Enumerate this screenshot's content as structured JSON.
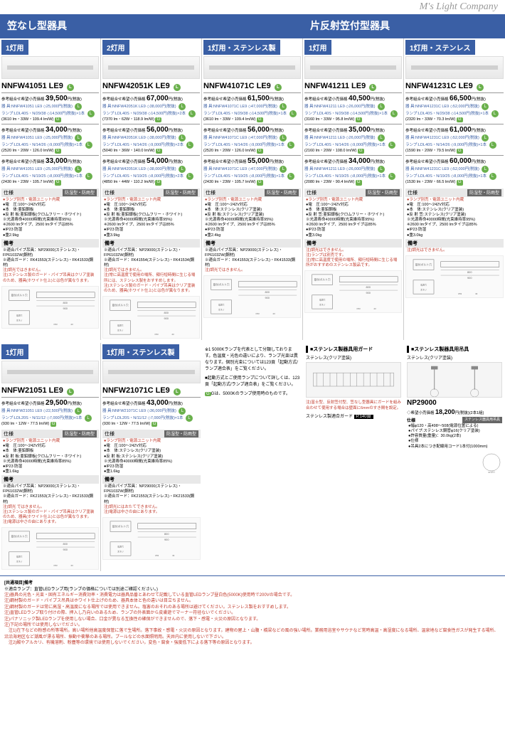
{
  "brand": "M's Light Company",
  "cat1": "笠なし型器具",
  "cat2": "片反射笠付型器具",
  "tabs": [
    "1灯用",
    "2灯用",
    "1灯用・ステンレス製",
    "1灯用",
    "1灯用・ステンレス"
  ],
  "models": [
    "NNFW41051 LE9",
    "NNFW42051K LE9",
    "NNFW41071C LE9",
    "NNFW41211 LE9",
    "NNFW41231C LE9"
  ],
  "p": [
    {
      "b1": {
        "lbl": "参考組合せ希望小売価格",
        "pr": "39,500",
        "tx": "円(税抜)",
        "l1": "器 具:NNFW41051 LE9 ◇25,000円(税抜)",
        "l2": "ランプ:LDL40S・N/29/38 ◇14,500円(税抜)×1本",
        "l3": "(3610 lm・33W・109.4 lm/W)"
      },
      "b2": {
        "lbl": "参考組合せ希望小売価格",
        "pr": "34,000",
        "tx": "円(税抜)",
        "l1": "器 具:NNFW41051 LE9 ◇25,000円(税抜)",
        "l2": "ランプ:LDL40S・N/14/26 ◇9,000円(税抜)×1本",
        "l3": "(2520 lm・20W・126.0 lm/W)"
      },
      "b3": {
        "lbl": "参考組合せ希望小売価格",
        "pr": "33,000",
        "tx": "円(税抜)",
        "l1": "器 具:NNFW41051 LE9 ◇25,000円(税抜)",
        "l2": "ランプ:LDL40S・N/19/25 ◇8,000円(税抜)×1本",
        "l3": "(2430 lm・23W・105.7 lm/W)"
      }
    },
    {
      "b1": {
        "lbl": "参考組合せ希望小売価格",
        "pr": "67,000",
        "tx": "円(税抜)",
        "l1": "器 具:NNFW42051K LE9 ◇38,000円(税抜)",
        "l2": "ランプ:LDL40S・N/29/38 ◇14,500円(税抜)×2本",
        "l3": "(7370 lm・62W・118.9 lm/W)"
      },
      "b2": {
        "lbl": "参考組合せ希望小売価格",
        "pr": "56,000",
        "tx": "円(税抜)",
        "l1": "器 具:NNFW42051K LE9 ◇38,000円(税抜)",
        "l2": "ランプ:LDL40S・N/14/26 ◇9,000円(税抜)×2本",
        "l3": "(5040 lm・36W・140.0 lm/W)"
      },
      "b3": {
        "lbl": "参考組合せ希望小売価格",
        "pr": "54,000",
        "tx": "円(税抜)",
        "l1": "器 具:NNFW42051K LE9 ◇38,000円(税抜)",
        "l2": "ランプ:LDL40S・N/19/25 ◇8,000円(税抜)×2本",
        "l3": "(4850 lm・44W・110.2 lm/W)"
      }
    },
    {
      "b1": {
        "lbl": "参考組合せ希望小売価格",
        "pr": "61,500",
        "tx": "円(税抜)",
        "l1": "器 具:NNFW41071C LE9 ◇47,000円(税抜)",
        "l2": "ランプ:LDL40S・N/29/38 ◇14,500円(税抜)×1本",
        "l3": "(3610 lm・33W・109.4 lm/W)"
      },
      "b2": {
        "lbl": "参考組合せ希望小売価格",
        "pr": "56,000",
        "tx": "円(税抜)",
        "l1": "器 具:NNFW41071C LE9 ◇47,000円(税抜)",
        "l2": "ランプ:LDL40S・N/14/26 ◇9,000円(税抜)×1本",
        "l3": "(2520 lm・20W・126.0 lm/W)"
      },
      "b3": {
        "lbl": "参考組合せ希望小売価格",
        "pr": "55,000",
        "tx": "円(税抜)",
        "l1": "器 具:NNFW41071C LE9 ◇47,000円(税抜)",
        "l2": "ランプ:LDL40S・N/19/25 ◇8,000円(税抜)×1本",
        "l3": "(2430 lm・23W・105.7 lm/W)"
      }
    },
    {
      "b1": {
        "lbl": "参考組合せ希望小売価格",
        "pr": "40,500",
        "tx": "円(税抜)",
        "l1": "器 具:NNFW41211 LE9 ◇26,000円(税抜)",
        "l2": "ランプ:LDL40S・N/29/38 ◇14,500円(税抜)×1本",
        "l3": "(3160 lm・33W・95.8 lm/W)"
      },
      "b2": {
        "lbl": "参考組合せ希望小売価格",
        "pr": "35,000",
        "tx": "円(税抜)",
        "l1": "器 具:NNFW41211 LE9 ◇26,000円(税抜)",
        "l2": "ランプ:LDL40S・N/14/26 ◇9,000円(税抜)×1本",
        "l3": "(2160 lm・20W・108.0 lm/W)"
      },
      "b3": {
        "lbl": "参考組合せ希望小売価格",
        "pr": "34,000",
        "tx": "円(税抜)",
        "l1": "器 具:NNFW41211 LE9 ◇26,000円(税抜)",
        "l2": "ランプ:LDL40S・N/19/25 ◇8,000円(税抜)×1本",
        "l3": "(2080 lm・23W・90.4 lm/W)"
      }
    },
    {
      "b1": {
        "lbl": "参考組合せ希望小売価格",
        "pr": "66,500",
        "tx": "円(税抜)",
        "l1": "器 具:NNFW41231C LE9 ◇52,000円(税抜)",
        "l2": "ランプ:LDL40S・N/29/38 ◇14,500円(税抜)×1本",
        "l3": "(2320 lm・33W・70.3 lm/W)"
      },
      "b2": {
        "lbl": "参考組合せ希望小売価格",
        "pr": "61,000",
        "tx": "円(税抜)",
        "l1": "器 具:NNFW41231C LE9 ◇52,000円(税抜)",
        "l2": "ランプ:LDL40S・N/14/26 ◇9,000円(税抜)×1本",
        "l3": "(1590 lm・20W・79.5 lm/W)"
      },
      "b3": {
        "lbl": "参考組合せ希望小売価格",
        "pr": "60,000",
        "tx": "円(税抜)",
        "l1": "器 具:NNFW41231C LE9 ◇52,000円(税抜)",
        "l2": "ランプ:LDL40S・N/19/25 ◇8,000円(税抜)×1本",
        "l3": "(1530 lm・23W・66.5 lm/W)"
      }
    }
  ],
  "spec_hdr": "仕様",
  "spec_tag": "防湿型・防雨型",
  "specs": [
    [
      "ランプ別売・電源ユニット内蔵",
      "電　圧:100～242V対応",
      "本　体:亜鉛鋼板",
      "反 射 板:亜鉛銀板(クロムフリー・ホワイト)",
      "光源寿命40000時間(光束維持率95%)",
      "2600 lmタイプ、2500 lmタイプは85%",
      "IP23 防湿",
      "重2.9kg"
    ],
    [
      "ランプ別売・電源ユニット内蔵",
      "電　圧:100～242V対応",
      "本　体:亜鉛鋼板",
      "反 射 板:亜鉛銀板(クロムフリー・ホワイト)",
      "光源寿命40000時間(光束維持率95%)",
      "2600 lmタイプ、2500 lmタイプは85%",
      "IP23 防湿",
      "重3.9kg"
    ],
    [
      "ランプ別売・電源ユニット内蔵",
      "電　圧:100～242V対応",
      "本　体:ステンレス(クリア塗装)",
      "反 射 板:ステンレス(クリア塗装)",
      "光源寿命40000時間(光束維持率95%)",
      "2600 lmタイプ、2500 lmタイプは85%",
      "IP23 防湿",
      "重2.4kg"
    ],
    [
      "ランプ別売・電源ユニット内蔵",
      "電　圧:100～242V対応",
      "本　体:亜鉛鋼板",
      "反 射 笠:亜鉛銀板(クロムフリー・ホワイト)",
      "光源寿命40000時間(光束維持率95%)",
      "2600 lmタイプ、2500 lmタイプは85%",
      "IP23 防湿",
      "重3.0kg"
    ],
    [
      "ランプ別売・電源ユニット内蔵",
      "電　圧:100～242V対応",
      "本　体:ステンレス(クリア塗装)",
      "反 射 笠:ステンレス(クリア塗装)",
      "光源寿命40000時間(光束維持率95%)",
      "2600 lmタイプ、2500 lmタイプは85%",
      "IP23 防湿",
      "重3.0kg"
    ]
  ],
  "biko": "備考",
  "notes": [
    [
      "適合パイプ吊具：NP29000(ステンレス)・FP61032W(鋼材)",
      "適合ガード：FK41553(ステンレス)・FK41533(鋼材)",
      "注)調光ではきません。",
      "注)ステンレス製のガード・パイプ吊具はクリア塗装のため、器具(ホワイト仕上)とは色が異なります。"
    ],
    [
      "適合パイプ吊具：NP29000(ステンレス)・FP61032W(鋼材)",
      "適合ガード：FK41554(ステンレス)・FK41534(鋼材)",
      "注)調光ではきません。",
      "注)常に高温度で使用の場所、頻行短時間に生じる場所には、ステンレス製をおすすめします。",
      "注)ステンレス製のガード・パイプ吊具はクリア塗装のため、器具(ホワイト仕上)とは色が異なります。"
    ],
    [
      "適合パイプ吊具：NP29000(ステンレス)・FP61032W(鋼材)",
      "適合ガード：FK41553(ステンレス)・FK41533(鋼材)",
      "注)調光ではきません。"
    ],
    [
      "注)調光はできません。",
      "注)ランプは別売です。",
      "注)常に高温度で使用の場所、頻行短時間に生じる場所がおすすめのステンレス製品です。"
    ],
    [
      "注)調光はできません。"
    ]
  ],
  "row2tabs": [
    "1灯用",
    "1灯用・ステンレス製"
  ],
  "row2models": [
    "NNFW21051 LE9",
    "NNFW21071C LE9"
  ],
  "r2": [
    {
      "lbl": "参考組合せ希望小売価格",
      "pr": "29,500",
      "tx": "円(税抜)",
      "l1": "器 具:NNFW21051 LE9 ◇22,500円(税抜)",
      "l2": "ランプ:LDL20S・N/11/12 ◇7,000円(税抜)×1本",
      "l3": "(930 lm・12W・77.5 lm/W)"
    },
    {
      "lbl": "参考組合せ希望小売価格",
      "pr": "43,000",
      "tx": "円(税抜)",
      "l1": "器 具:NNFW21071C LE9 ◇36,000円(税抜)",
      "l2": "ランプ:LDL20S・N/11/12 ◇7,000円(税抜)×1本",
      "l3": "(930 lm・12W・77.5 lm/W)"
    }
  ],
  "r2specs": [
    [
      "ランプ別売・電源ユニット内蔵",
      "電　圧:100～242V対応",
      "本　体:亜鉛鋼板",
      "反 射 板:亜鉛銀板(クロムフリー・ホワイト)",
      "光源寿命40000時間(光束維持率85%)",
      "IP23 防湿",
      "重1.6kg"
    ],
    [
      "ランプ別売・電源ユニット内蔵",
      "電　圧:100～242V対応",
      "本　体:ステンレス(クリア塗装)",
      "反 射 板:ステンレス(クリア塗装)",
      "光源寿命40000時間(光束維持率85%)",
      "IP23 防湿",
      "重1.6kg"
    ]
  ],
  "r2notes": [
    [
      "適合パイプ吊具：NP29000(ステンレス)・FP61032W(鋼材)",
      "適合ガード：FK21553(ステンレス)・FK21533(鋼材)",
      "注)調光 ではきません。",
      "注)ステンレス製のガード・パイプ吊具はクリア塗装のため、器具(ホワイト仕上)とは色が異なります。",
      "注)電源は中さの由にあります。"
    ],
    [
      "適合パイプ吊具：NP29000(ステンレス)・FP61032W(鋼材)",
      "適合ガード：FK21553(ステンレス)・FK21533(鋼材)",
      "注)調光にはおたてできません。",
      "注)電源は中さの由にあります。"
    ]
  ],
  "acc1": {
    "hdr": "■ステンレス製器具用ガード",
    "sub": "ステンレス(クリア塗装)",
    "note": "注)富士型、反射笠付型、笠なし型器具にガードを組み合わせて使用する場合は壁面に6mmのすき間を設定。",
    "lbl": "ステンレス製適合ガード",
    "tag": "P.140頁"
  },
  "acc2": {
    "hdr": "■ステンレス製器具用吊具",
    "sub": "ステンレス(クリア塗装)",
    "model": "NP29000",
    "price": "18,200",
    "ptx": "円(税抜)(2本1組)",
    "specs": [
      "幅φ120・高498～508(電源位置による)",
      "パイプ:ステンレス鋼管φ16(クリア塗装)",
      "許容質量(重量)：30.0kg(2本)",
      "仕様",
      "吊具2本につき配線用コード1本付(1000mm)"
    ],
    "tag": "ステンレス器具用吊具"
  },
  "midnote1": "※1 5000Kランプを代表として分類しております。色温度・光色の違いにより、ランプ光束は異なります。個別光束については123頁「起動方式/ランプ適合表」をご覧ください。",
  "midnote2": "■起動方式とご使用ランプについて詳しくは、123頁「起動方式/ランプ適合表」をご覧ください。",
  "midnote3": "Gは、5000Kのランプ使用時のものです。",
  "footer": {
    "title": "[共通項目]備考",
    "lines": [
      "※適合ランプ：直管LEDランプ用(ランプの価格については別途ご確認ください。)",
      "注)器具の光色・光束・固有エネルギー消費効率・消費電力は器具品番とあわせて記載している直管LEDランプ昼白色(5000K)使用時で200Vの場合です。",
      "注)鋼材製のガード・パイプス吊具はホワイト仕上げのため、器具本体と色の違いは目立ちません。",
      "注)鋼材製のガードは常に高湿・高温度になる場所では使用できません。塩害のおそれのある場所は避けてください。ステンレス製をおすすめします。",
      "注)直管LEDランプ取り付けの際、押入し乃向いのあるため、ランプの外表面から皮膚遊でマーナー符径ないでください。",
      "注)パナソニック製LEDランプを使用しない場合、口金が異なる互換性の確保ができませんので、落下・感電・火災の原因となります。",
      "注)下記の場所では使用しないでださい。",
      "　注1)在下などの粉感の所等場所。高い場所他高温度保管に落で生場所。落下事故・感電・火災の原因となります。建物の屋上・山腹・橋梁などの風の強い場所。業務用浴室やサウナなど常時高温・高湿度になる場所、温泉地など腐食性ガスが発生する場所、沿沿海地区など潮風が漂る場所、振動や衝撃のある場所。プールなどの水面照明用。天井内に使用しないで下さい。",
      "　注2)酸やアルカリ、有機溶剤、粉塵等の環境では使用しないでください。変色・腐食・強度低下による落下等の原因となります。"
    ]
  },
  "colors": {
    "primary": "#3a5fa5",
    "red": "#c0392b",
    "green": "#6ab04c"
  }
}
